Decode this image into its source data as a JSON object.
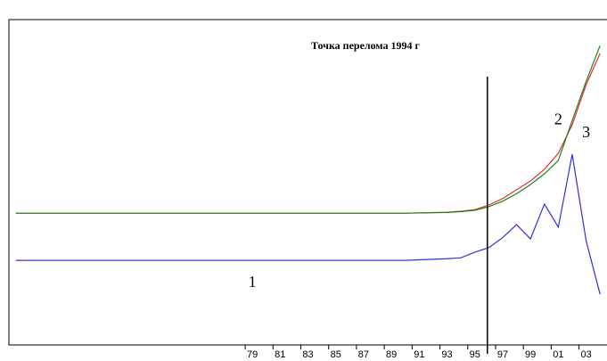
{
  "chart_data": {
    "type": "line",
    "title": "Точка перелома 1994 г",
    "x": [
      1962,
      1990,
      1993,
      1994,
      1995,
      1996,
      1997,
      1998,
      1999,
      2000,
      2001,
      2002,
      2003,
      2004
    ],
    "series": [
      {
        "name": "2",
        "color": "#e03030",
        "values": [
          40.5,
          40.5,
          40.8,
          41.1,
          41.6,
          43,
          45,
          47.7,
          50.4,
          54,
          58.9,
          67.7,
          80,
          89.6
        ]
      },
      {
        "name": "1",
        "color": "#3030e0",
        "values": [
          26,
          26,
          26.5,
          26.8,
          28.5,
          29.9,
          33,
          37,
          32.6,
          43.3,
          36.2,
          58.6,
          32,
          15.6
        ]
      },
      {
        "name": "3",
        "color": "#208020",
        "values": [
          40.5,
          40.5,
          40.7,
          41,
          41.4,
          42.5,
          44.2,
          46.5,
          49.3,
          52.6,
          56.7,
          69,
          81,
          92
        ]
      }
    ],
    "annotations": [
      {
        "text": "1",
        "x": 1979,
        "y": 19
      },
      {
        "text": "2",
        "x": 2001,
        "y": 69
      },
      {
        "text": "3",
        "x": 2003,
        "y": 65
      }
    ],
    "vline": 1995.9,
    "xlim": [
      1961.5,
      2004.5
    ],
    "ylim": [
      0,
      100
    ],
    "xticks": [
      {
        "value": 1979,
        "label": "79"
      },
      {
        "value": 1981,
        "label": "81"
      },
      {
        "value": 1983,
        "label": "83"
      },
      {
        "value": 1985,
        "label": "85"
      },
      {
        "value": 1987,
        "label": "87"
      },
      {
        "value": 1989,
        "label": "89"
      },
      {
        "value": 1991,
        "label": "91"
      },
      {
        "value": 1993,
        "label": "93"
      },
      {
        "value": 1995,
        "label": "95"
      },
      {
        "value": 1997,
        "label": "97"
      },
      {
        "value": 1999,
        "label": "99"
      },
      {
        "value": 2001,
        "label": "01"
      },
      {
        "value": 2003,
        "label": "03"
      }
    ]
  }
}
